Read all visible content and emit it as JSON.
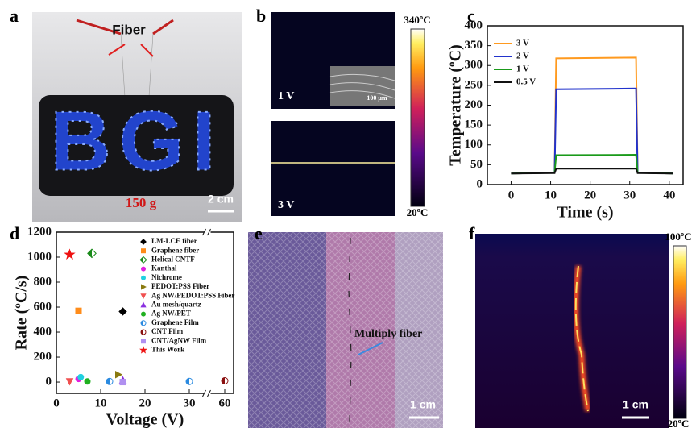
{
  "panel_labels": [
    "a",
    "b",
    "c",
    "d",
    "e",
    "f"
  ],
  "panels": {
    "a": {
      "fiber_label": "Fiber",
      "board_text": "BGI",
      "weight": "150 g",
      "scale_bar": "2 cm"
    },
    "b": {
      "top_label": "1 V",
      "bottom_label": "3 V",
      "inset_scale": "100 μm",
      "colorbar_max": "340ºC",
      "colorbar_min": "20ºC"
    },
    "e": {
      "annotation": "Multiply fiber",
      "scale_bar": "1 cm"
    },
    "f": {
      "colorbar_max": "100ºC",
      "colorbar_min": "20ºC",
      "scale_bar": "1 cm"
    }
  },
  "chart_data": [
    {
      "type": "line",
      "xlabel": "Time (s)",
      "ylabel": "Temperature (ºC)",
      "x": [
        0,
        11,
        11.4,
        31.6,
        32,
        41
      ],
      "xlim": [
        -6,
        43.5
      ],
      "xticks": [
        0,
        10,
        20,
        30,
        40
      ],
      "ylim": [
        0,
        400
      ],
      "yticks": [
        0,
        50,
        100,
        150,
        200,
        250,
        300,
        350,
        400
      ],
      "legend": "upper-left",
      "series": [
        {
          "name": "3 V",
          "color": "#ff9a1f",
          "values": [
            28,
            30,
            318,
            320,
            30,
            28
          ]
        },
        {
          "name": "2 V",
          "color": "#2233cc",
          "values": [
            28,
            30,
            240,
            242,
            30,
            28
          ]
        },
        {
          "name": "1 V",
          "color": "#1a9a1a",
          "values": [
            28,
            30,
            74,
            75,
            30,
            28
          ]
        },
        {
          "name": "0.5 V",
          "color": "#111111",
          "values": [
            28,
            29,
            40,
            40,
            29,
            28
          ]
        }
      ]
    },
    {
      "type": "scatter",
      "xlabel": "Voltage (V)",
      "ylabel": "Rate (ºC/s)",
      "xlim": [
        0,
        62
      ],
      "xbreak": [
        33,
        55
      ],
      "xticks": [
        0,
        10,
        20,
        30,
        60
      ],
      "ylim": [
        -90,
        1200
      ],
      "yticks": [
        0,
        200,
        400,
        600,
        800,
        1000,
        1200
      ],
      "legend": "upper-right",
      "series": [
        {
          "name": "LM-LCE fiber",
          "color": "#000000",
          "marker": "diamond",
          "x": [
            15
          ],
          "values": [
            565
          ]
        },
        {
          "name": "Graphene fiber",
          "color": "#ff8c1a",
          "marker": "square",
          "x": [
            5
          ],
          "values": [
            570
          ]
        },
        {
          "name": "Helical CNTF",
          "color": "#1a8a1a",
          "marker": "half-diamond",
          "x": [
            8
          ],
          "values": [
            1030
          ]
        },
        {
          "name": "Kanthal",
          "color": "#e020e0",
          "marker": "circle",
          "x": [
            5
          ],
          "values": [
            25
          ]
        },
        {
          "name": "Nichrome",
          "color": "#20d0e0",
          "marker": "circle",
          "x": [
            5.5
          ],
          "values": [
            40
          ]
        },
        {
          "name": "PEDOT:PSS Fiber",
          "color": "#8a7a10",
          "marker": "triangle-right",
          "x": [
            14
          ],
          "values": [
            60
          ]
        },
        {
          "name": "Ag NW/PEDOT:PSS Fiber",
          "color": "#f05050",
          "marker": "triangle-down",
          "x": [
            3
          ],
          "values": [
            5
          ]
        },
        {
          "name": "Au mesh/quartz",
          "color": "#8a30e0",
          "marker": "triangle-up",
          "x": [
            15
          ],
          "values": [
            15
          ]
        },
        {
          "name": "Ag NW/PET",
          "color": "#20b020",
          "marker": "circle",
          "x": [
            7
          ],
          "values": [
            5
          ]
        },
        {
          "name": "Graphene Film",
          "color": "#2a8ae0",
          "marker": "half-circle",
          "x": [
            12,
            30
          ],
          "values": [
            5,
            5
          ]
        },
        {
          "name": "CNT Film",
          "color": "#8a1010",
          "marker": "half-circle",
          "x": [
            60
          ],
          "values": [
            10
          ]
        },
        {
          "name": "CNT/AgNW Film",
          "color": "#b090f0",
          "marker": "square",
          "x": [
            15
          ],
          "values": [
            0
          ]
        },
        {
          "name": "This Work",
          "color": "#ee1111",
          "marker": "star",
          "x": [
            3
          ],
          "values": [
            1020
          ]
        }
      ]
    }
  ]
}
